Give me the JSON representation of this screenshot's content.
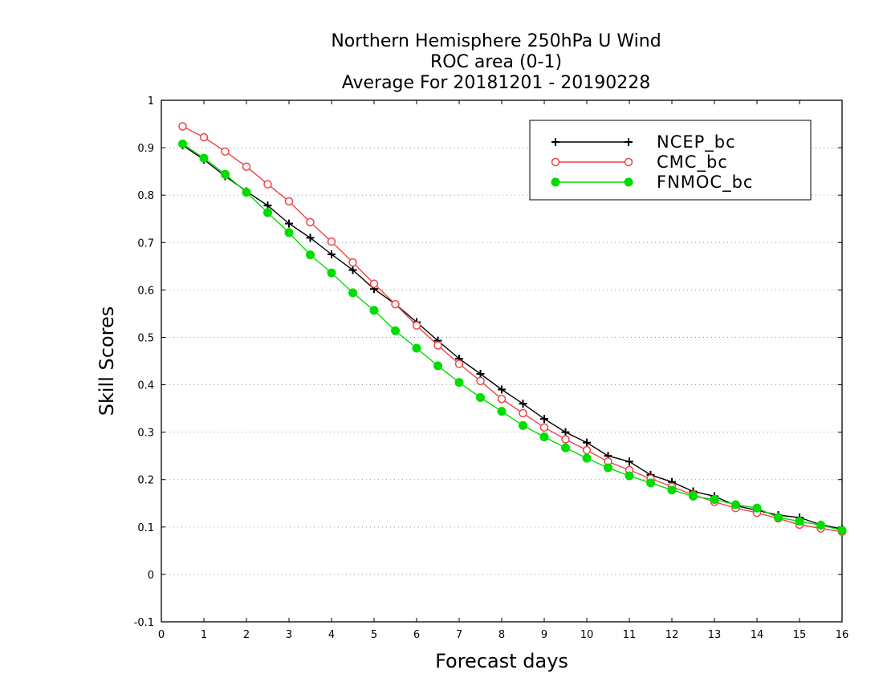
{
  "chart_data": {
    "type": "line",
    "title": [
      "Northern Hemisphere 250hPa U Wind",
      "ROC area (0-1)",
      "Average For 20181201 - 20190228"
    ],
    "xlabel": "Forecast days",
    "ylabel": "Skill Scores",
    "xlim": [
      0,
      16
    ],
    "ylim": [
      -0.1,
      1
    ],
    "x_ticks": [
      "0",
      "1",
      "2",
      "3",
      "4",
      "5",
      "6",
      "7",
      "8",
      "9",
      "10",
      "11",
      "12",
      "13",
      "14",
      "15",
      "16"
    ],
    "y_ticks": [
      "-0.1",
      "0",
      "0.1",
      "0.2",
      "0.3",
      "0.4",
      "0.5",
      "0.6",
      "0.7",
      "0.8",
      "0.9",
      "1"
    ],
    "grid": true,
    "legend_position": "top-right",
    "x": [
      0.5,
      1,
      1.5,
      2,
      2.5,
      3,
      3.5,
      4,
      4.5,
      5,
      5.5,
      6,
      6.5,
      7,
      7.5,
      8,
      8.5,
      9,
      9.5,
      10,
      10.5,
      11,
      11.5,
      12,
      12.5,
      13,
      13.5,
      14,
      14.5,
      15,
      15.5,
      16
    ],
    "series": [
      {
        "name": "NCEP_bc",
        "color": "#000000",
        "marker": "plus",
        "values": [
          0.905,
          0.875,
          0.84,
          0.808,
          0.778,
          0.74,
          0.71,
          0.675,
          0.642,
          0.602,
          0.57,
          0.532,
          0.493,
          0.455,
          0.423,
          0.39,
          0.36,
          0.328,
          0.3,
          0.278,
          0.25,
          0.238,
          0.21,
          0.195,
          0.175,
          0.165,
          0.145,
          0.135,
          0.125,
          0.12,
          0.105,
          0.096
        ]
      },
      {
        "name": "CMC_bc",
        "color": "#ee4444",
        "marker": "open-circle",
        "values": [
          0.945,
          0.922,
          0.892,
          0.86,
          0.823,
          0.787,
          0.743,
          0.702,
          0.658,
          0.613,
          0.57,
          0.525,
          0.483,
          0.444,
          0.408,
          0.37,
          0.34,
          0.31,
          0.285,
          0.262,
          0.238,
          0.22,
          0.202,
          0.185,
          0.168,
          0.153,
          0.14,
          0.13,
          0.118,
          0.105,
          0.097,
          0.09
        ]
      },
      {
        "name": "FNMOC_bc",
        "color": "#00dd00",
        "marker": "filled-circle",
        "values": [
          0.908,
          0.878,
          0.844,
          0.806,
          0.763,
          0.721,
          0.674,
          0.636,
          0.594,
          0.557,
          0.514,
          0.477,
          0.44,
          0.405,
          0.373,
          0.344,
          0.314,
          0.29,
          0.267,
          0.245,
          0.225,
          0.208,
          0.193,
          0.178,
          0.165,
          0.158,
          0.147,
          0.14,
          0.12,
          0.112,
          0.104,
          0.093
        ]
      }
    ]
  }
}
